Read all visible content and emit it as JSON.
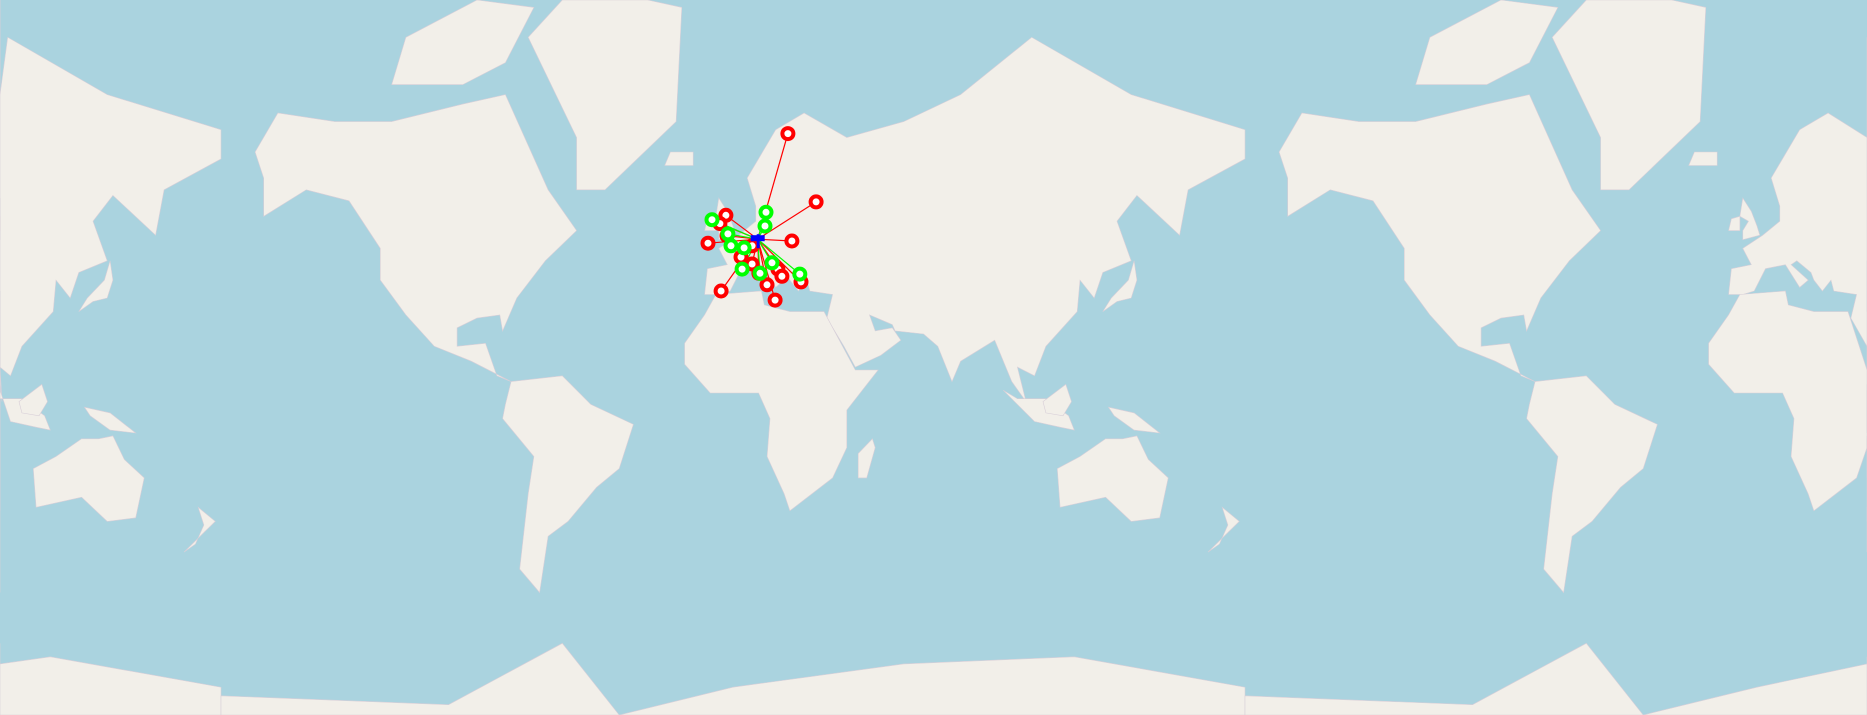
{
  "map": {
    "projection": "web-mercator",
    "zoom_level": 2,
    "colors": {
      "water": "#aad3df",
      "land": "#f2efe9",
      "red": "#ff0000",
      "green": "#00ff00",
      "hub": "#0000ff"
    },
    "hub": {
      "lat": 50.1,
      "lon": 8.7,
      "icon": "blue-hub-marker"
    },
    "markers": [
      {
        "lat": 68.5,
        "lon": 19.3,
        "status": "red"
      },
      {
        "lat": 57.8,
        "lon": 29.2,
        "status": "red"
      },
      {
        "lat": 55.2,
        "lon": -2.5,
        "status": "red"
      },
      {
        "lat": 53.5,
        "lon": -4.6,
        "status": "red"
      },
      {
        "lat": 49.2,
        "lon": -8.8,
        "status": "red"
      },
      {
        "lat": 50.9,
        "lon": -2.1,
        "status": "red"
      },
      {
        "lat": 49.7,
        "lon": 20.7,
        "status": "red"
      },
      {
        "lat": 45.9,
        "lon": 2.8,
        "status": "red"
      },
      {
        "lat": 44.2,
        "lon": 6.7,
        "status": "red"
      },
      {
        "lat": 41.8,
        "lon": 9.1,
        "status": "red"
      },
      {
        "lat": 42.9,
        "lon": 15.8,
        "status": "red"
      },
      {
        "lat": 41.0,
        "lon": 17.2,
        "status": "red"
      },
      {
        "lat": 39.5,
        "lon": 23.9,
        "status": "red"
      },
      {
        "lat": 38.7,
        "lon": 11.95,
        "status": "red"
      },
      {
        "lat": 34.4,
        "lon": 14.8,
        "status": "red"
      },
      {
        "lat": 37.0,
        "lon": -4.2,
        "status": "red"
      },
      {
        "lat": 48.6,
        "lon": 6.7,
        "status": "red"
      },
      {
        "lat": 54.3,
        "lon": -7.4,
        "status": "green"
      },
      {
        "lat": 55.8,
        "lon": 11.6,
        "status": "green"
      },
      {
        "lat": 53.0,
        "lon": 11.25,
        "status": "green"
      },
      {
        "lat": 51.3,
        "lon": -1.8,
        "status": "green"
      },
      {
        "lat": 48.6,
        "lon": -0.7,
        "status": "green"
      },
      {
        "lat": 48.1,
        "lon": 3.9,
        "status": "green"
      },
      {
        "lat": 42.9,
        "lon": 3.2,
        "status": "green"
      },
      {
        "lat": 44.5,
        "lon": 13.7,
        "status": "green"
      },
      {
        "lat": 41.8,
        "lon": 9.5,
        "status": "green"
      },
      {
        "lat": 41.6,
        "lon": 23.5,
        "status": "green"
      }
    ]
  }
}
